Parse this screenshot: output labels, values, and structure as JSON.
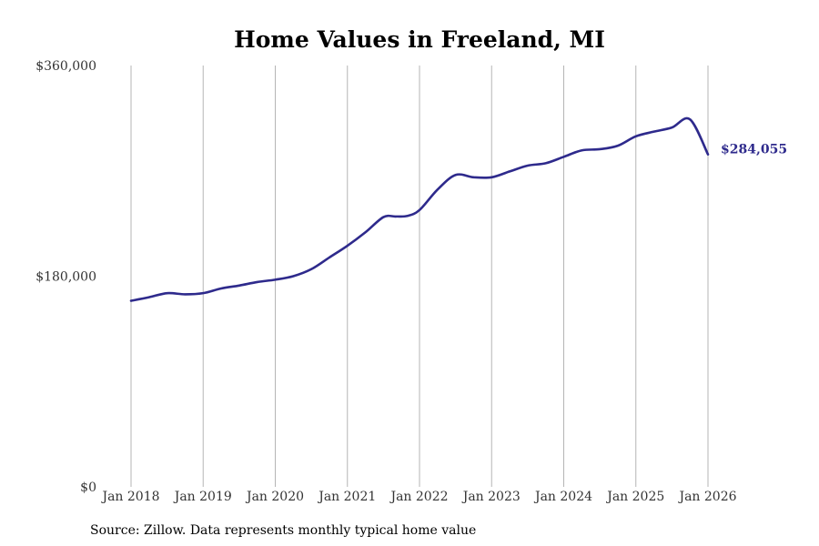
{
  "chart_data": {
    "type": "line",
    "title": "Home Values in Freeland, MI",
    "xlabel": "",
    "ylabel": "",
    "source": "Source: Zillow. Data represents monthly typical home value",
    "ylim": [
      0,
      360000
    ],
    "xlim": [
      2018.0,
      2026.0
    ],
    "y_ticks": [
      {
        "value": 0,
        "label": "$0"
      },
      {
        "value": 180000,
        "label": "$180,000"
      },
      {
        "value": 360000,
        "label": "$360,000"
      }
    ],
    "x_ticks": [
      {
        "value": 2018,
        "label": "Jan 2018"
      },
      {
        "value": 2019,
        "label": "Jan 2019"
      },
      {
        "value": 2020,
        "label": "Jan 2020"
      },
      {
        "value": 2021,
        "label": "Jan 2021"
      },
      {
        "value": 2022,
        "label": "Jan 2022"
      },
      {
        "value": 2023,
        "label": "Jan 2023"
      },
      {
        "value": 2024,
        "label": "Jan 2024"
      },
      {
        "value": 2025,
        "label": "Jan 2025"
      },
      {
        "value": 2026,
        "label": "Jan 2026"
      }
    ],
    "grid": {
      "x": true,
      "y": false
    },
    "line_color": "#2e2a8c",
    "grid_color": "#b5b5b5",
    "end_label": "$284,055",
    "series": [
      {
        "name": "Typical home value",
        "x": [
          2018.0,
          2018.25,
          2018.5,
          2018.75,
          2019.0,
          2019.25,
          2019.5,
          2019.75,
          2020.0,
          2020.25,
          2020.5,
          2020.75,
          2021.0,
          2021.25,
          2021.5,
          2021.667,
          2021.833,
          2022.0,
          2022.25,
          2022.5,
          2022.75,
          2023.0,
          2023.25,
          2023.5,
          2023.75,
          2024.0,
          2024.25,
          2024.5,
          2024.75,
          2025.0,
          2025.25,
          2025.5,
          2025.75,
          2026.0
        ],
        "y": [
          159000,
          162000,
          165500,
          164500,
          165500,
          169500,
          172000,
          175000,
          177000,
          180000,
          186000,
          196000,
          206000,
          217500,
          230500,
          231000,
          231500,
          236500,
          254000,
          266500,
          264500,
          264500,
          269500,
          274500,
          276500,
          282000,
          287500,
          288500,
          291500,
          299500,
          303500,
          307000,
          314000,
          284055
        ]
      }
    ]
  }
}
